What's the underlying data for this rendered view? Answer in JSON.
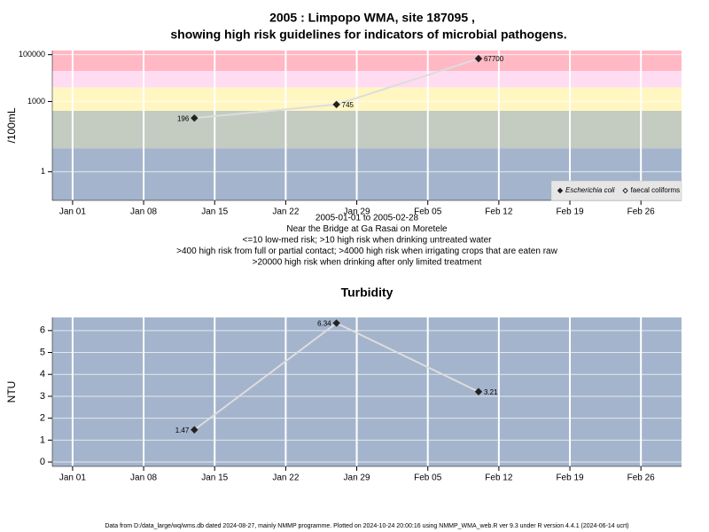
{
  "chart_data": [
    {
      "type": "line",
      "title": "2005 : Limpopo WMA, site 187095 ,",
      "subtitle": "showing high risk guidelines for indicators of microbial pathogens.",
      "ylabel": "/100mL",
      "log_scale": true,
      "ylim": [
        0.06,
        150000
      ],
      "yticks": [
        1,
        1000,
        100000
      ],
      "xlim": [
        "2004-12-30",
        "2005-03-02"
      ],
      "xticks": [
        {
          "value": "2005-01-01",
          "label": "Jan 01"
        },
        {
          "value": "2005-01-08",
          "label": "Jan 08"
        },
        {
          "value": "2005-01-15",
          "label": "Jan 15"
        },
        {
          "value": "2005-01-22",
          "label": "Jan 22"
        },
        {
          "value": "2005-01-29",
          "label": "Jan 29"
        },
        {
          "value": "2005-02-05",
          "label": "Feb 05"
        },
        {
          "value": "2005-02-12",
          "label": "Feb 12"
        },
        {
          "value": "2005-02-19",
          "label": "Feb 19"
        },
        {
          "value": "2005-02-26",
          "label": "Feb 26"
        }
      ],
      "x": [
        "2005-01-13",
        "2005-01-27",
        "2005-02-10"
      ],
      "series": [
        {
          "name": "Escherichia coli",
          "color": "#dddddd",
          "marker": "filled",
          "values": [
            196,
            745,
            67700
          ]
        },
        {
          "name": "faecal coliforms",
          "color": "#dddddd",
          "marker": "open",
          "values": [
            null,
            null,
            null
          ]
        }
      ],
      "bands": [
        {
          "from": 20000,
          "to": 150000,
          "color": "#ffb8c4"
        },
        {
          "from": 4000,
          "to": 20000,
          "color": "#ffdcf2"
        },
        {
          "from": 400,
          "to": 4000,
          "color": "#fff6c2"
        },
        {
          "from": 10,
          "to": 400,
          "color": "#c4cbc0"
        },
        {
          "from": 0.06,
          "to": 10,
          "color": "#a4b4cc"
        }
      ],
      "grid": true,
      "legend": "bottom right",
      "notes": [
        "2005-01-01 to 2005-02-28",
        "Near the Bridge at Ga Rasai on Moretele",
        "<=10 low-med risk; >10 high risk when drinking untreated water",
        ">400 high risk from full or partial contact; >4000 high risk when irrigating crops that are eaten raw",
        ">20000 high risk when drinking after only limited treatment"
      ]
    },
    {
      "type": "line",
      "title": "Turbidity",
      "ylabel": "NTU",
      "log_scale": false,
      "ylim": [
        -0.2,
        6.6
      ],
      "yticks": [
        0,
        1,
        2,
        3,
        4,
        5,
        6
      ],
      "xlim": [
        "2004-12-30",
        "2005-03-02"
      ],
      "xticks": [
        {
          "value": "2005-01-01",
          "label": "Jan 01"
        },
        {
          "value": "2005-01-08",
          "label": "Jan 08"
        },
        {
          "value": "2005-01-15",
          "label": "Jan 15"
        },
        {
          "value": "2005-01-22",
          "label": "Jan 22"
        },
        {
          "value": "2005-01-29",
          "label": "Jan 29"
        },
        {
          "value": "2005-02-05",
          "label": "Feb 05"
        },
        {
          "value": "2005-02-12",
          "label": "Feb 12"
        },
        {
          "value": "2005-02-19",
          "label": "Feb 19"
        },
        {
          "value": "2005-02-26",
          "label": "Feb 26"
        }
      ],
      "x": [
        "2005-01-13",
        "2005-01-27",
        "2005-02-10"
      ],
      "series": [
        {
          "name": "Turbidity",
          "color": "#dddddd",
          "marker": "filled",
          "values": [
            1.47,
            6.34,
            3.21
          ]
        }
      ],
      "background": "#a4b4cc",
      "grid": true
    }
  ],
  "footer": "Data from D:/data_large/wq/wms.db dated 2024-08-27, mainly NMMP programme. Plotted on 2024-10-24 20:00:16 using NMMP_WMA_web.R ver 9.3 under R version 4.4.1 (2024-06-14 ucrt)"
}
